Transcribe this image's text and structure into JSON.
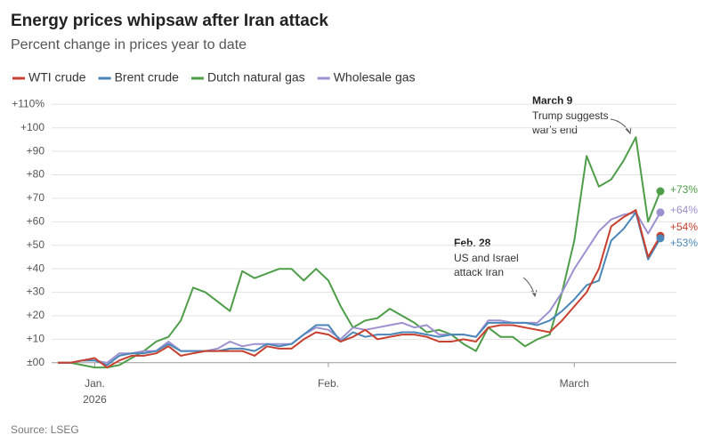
{
  "chart_data": {
    "type": "line",
    "title": "Energy prices whipsaw after Iran attack",
    "subtitle": "Percent change in prices year to date",
    "source": "Source: LSEG",
    "categories": [
      null,
      null,
      null,
      "Jan.",
      null,
      null,
      null,
      null,
      null,
      null,
      null,
      null,
      null,
      null,
      null,
      null,
      null,
      null,
      null,
      null,
      null,
      null,
      "Feb.",
      null,
      null,
      null,
      null,
      null,
      null,
      null,
      null,
      null,
      null,
      null,
      null,
      null,
      null,
      null,
      null,
      null,
      null,
      null,
      "March",
      null,
      null,
      null,
      null,
      null,
      null,
      null
    ],
    "x_year_label": "2026",
    "ylim": [
      -5,
      112
    ],
    "yticks": [
      {
        "value": 0,
        "label": "±00"
      },
      {
        "value": 10,
        "label": "+10"
      },
      {
        "value": 20,
        "label": "+20"
      },
      {
        "value": 30,
        "label": "+30"
      },
      {
        "value": 40,
        "label": "+40"
      },
      {
        "value": 50,
        "label": "+50"
      },
      {
        "value": 60,
        "label": "+60"
      },
      {
        "value": 70,
        "label": "+70"
      },
      {
        "value": 80,
        "label": "+80"
      },
      {
        "value": 90,
        "label": "+90"
      },
      {
        "value": 100,
        "label": "+100"
      },
      {
        "value": 110,
        "label": "+110%"
      }
    ],
    "grid": true,
    "series": [
      {
        "name": "WTI crude",
        "color": "#c8402f",
        "end_label": "+54%",
        "values": [
          0,
          0,
          1,
          2,
          -2,
          1,
          3,
          3,
          4,
          7,
          3,
          4,
          5,
          5,
          5,
          5,
          3,
          7,
          6,
          6,
          10,
          13,
          12,
          9,
          11,
          14,
          10,
          11,
          12,
          12,
          11,
          9,
          9,
          10,
          9,
          15,
          16,
          16,
          15,
          14,
          13,
          18,
          24,
          30,
          40,
          58,
          62,
          65,
          45,
          54
        ]
      },
      {
        "name": "Brent crude",
        "color": "#4a86b8",
        "end_label": "+53%",
        "values": [
          0,
          0,
          1,
          1,
          -1,
          3,
          4,
          4,
          5,
          8,
          5,
          5,
          5,
          5,
          6,
          6,
          5,
          8,
          7,
          8,
          12,
          16,
          16,
          9,
          13,
          11,
          12,
          12,
          13,
          13,
          12,
          11,
          12,
          12,
          11,
          17,
          17,
          17,
          17,
          16,
          18,
          22,
          27,
          33,
          35,
          52,
          57,
          64,
          44,
          53
        ]
      },
      {
        "name": "Dutch natural gas",
        "color": "#4e9d48",
        "end_label": "+73%",
        "values": [
          0,
          0,
          -1,
          -2,
          -2,
          -1,
          2,
          5,
          9,
          11,
          18,
          32,
          30,
          26,
          22,
          39,
          36,
          38,
          40,
          40,
          35,
          40,
          35,
          24,
          15,
          18,
          19,
          23,
          20,
          17,
          13,
          14,
          12,
          8,
          5,
          15,
          11,
          11,
          7,
          10,
          12,
          30,
          52,
          88,
          75,
          78,
          86,
          96,
          60,
          73
        ]
      },
      {
        "name": "Wholesale gas",
        "color": "#9d90cf",
        "end_label": "+64%",
        "values": [
          0,
          0,
          1,
          1,
          0,
          4,
          4,
          5,
          5,
          9,
          5,
          5,
          5,
          6,
          9,
          7,
          8,
          8,
          8,
          8,
          12,
          15,
          14,
          10,
          15,
          14,
          15,
          16,
          17,
          15,
          16,
          12,
          12,
          12,
          11,
          18,
          18,
          17,
          17,
          17,
          22,
          30,
          40,
          48,
          56,
          61,
          63,
          64,
          55,
          64
        ]
      }
    ],
    "annotations": [
      {
        "title": "March 9",
        "lines": [
          "Trump suggests",
          "war's end"
        ]
      },
      {
        "title": "Feb. 28",
        "lines": [
          "US and Israel",
          "attack Iran"
        ]
      }
    ]
  }
}
